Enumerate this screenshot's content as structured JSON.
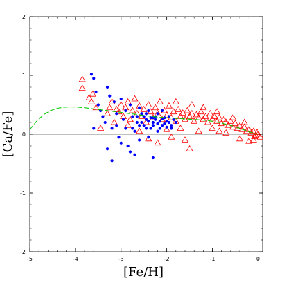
{
  "chart_data": {
    "type": "scatter",
    "title": "",
    "xlabel": "[Fe/H]",
    "ylabel": "[Ca/Fe]",
    "xlim": [
      -5,
      0.1
    ],
    "ylim": [
      -2,
      2
    ],
    "x_ticks": [
      -5,
      -4,
      -3,
      -2,
      -1,
      0
    ],
    "y_ticks": [
      -2,
      -1,
      0,
      1,
      2
    ],
    "x_tick_labels": [
      "-5",
      "-4",
      "-3",
      "-2",
      "-1",
      "0"
    ],
    "y_tick_labels": [
      "-2",
      "-1",
      "0",
      "1",
      "2"
    ],
    "grid": false,
    "reference_line": {
      "y": 0,
      "color": "#000000"
    },
    "model_curve": {
      "color": "#00cc00",
      "style": "dashed",
      "x": [
        -5.0,
        -4.85,
        -4.7,
        -4.55,
        -4.4,
        -4.25,
        -4.1,
        -3.95,
        -3.8,
        -3.6,
        -3.4,
        -3.2,
        -3.0,
        -2.8,
        -2.6,
        -2.4,
        -2.2,
        -2.0,
        -1.8,
        -1.6,
        -1.4,
        -1.2,
        -1.0,
        -0.8,
        -0.6,
        -0.4,
        -0.2,
        0.0
      ],
      "y": [
        0.08,
        0.22,
        0.33,
        0.4,
        0.44,
        0.46,
        0.465,
        0.46,
        0.45,
        0.43,
        0.41,
        0.39,
        0.37,
        0.35,
        0.33,
        0.31,
        0.29,
        0.28,
        0.27,
        0.26,
        0.25,
        0.24,
        0.22,
        0.19,
        0.15,
        0.1,
        0.04,
        0.0
      ]
    },
    "series": [
      {
        "marker": "open-triangle",
        "color": "#ff0000",
        "points": [
          [
            -3.85,
            0.93
          ],
          [
            -3.85,
            0.78
          ],
          [
            -3.7,
            0.62
          ],
          [
            -3.65,
            0.55
          ],
          [
            -3.62,
            0.68
          ],
          [
            -3.45,
            0.1
          ],
          [
            -3.3,
            0.35
          ],
          [
            -3.25,
            0.45
          ],
          [
            -3.15,
            0.2
          ],
          [
            -3.1,
            0.42
          ],
          [
            -3.05,
            0.38
          ],
          [
            -3.0,
            0.5
          ],
          [
            -2.95,
            0.3
          ],
          [
            -2.9,
            0.45
          ],
          [
            -2.85,
            0.55
          ],
          [
            -2.8,
            0.25
          ],
          [
            -2.75,
            0.4
          ],
          [
            -2.7,
            0.6
          ],
          [
            -2.65,
            0.35
          ],
          [
            -2.6,
            0.48
          ],
          [
            -2.55,
            0.3
          ],
          [
            -2.5,
            0.42
          ],
          [
            -2.45,
            0.2
          ],
          [
            -2.4,
            0.5
          ],
          [
            -2.35,
            0.38
          ],
          [
            -2.3,
            0.28
          ],
          [
            -2.25,
            0.45
          ],
          [
            -2.2,
            0.35
          ],
          [
            -2.15,
            0.55
          ],
          [
            -2.1,
            0.25
          ],
          [
            -2.05,
            0.4
          ],
          [
            -2.0,
            0.32
          ],
          [
            -1.95,
            0.48
          ],
          [
            -1.9,
            0.28
          ],
          [
            -1.85,
            0.38
          ],
          [
            -1.8,
            0.22
          ],
          [
            -1.75,
            0.42
          ],
          [
            -1.7,
            0.3
          ],
          [
            -1.65,
            0.36
          ],
          [
            -1.6,
            0.25
          ],
          [
            -1.55,
            0.4
          ],
          [
            -1.5,
            0.3
          ],
          [
            -1.45,
            0.35
          ],
          [
            -1.4,
            0.22
          ],
          [
            -1.35,
            0.33
          ],
          [
            -1.3,
            0.28
          ],
          [
            -1.25,
            0.38
          ],
          [
            -1.2,
            0.25
          ],
          [
            -1.15,
            0.3
          ],
          [
            -1.1,
            0.2
          ],
          [
            -1.05,
            0.35
          ],
          [
            -1.0,
            0.26
          ],
          [
            -0.95,
            0.3
          ],
          [
            -0.9,
            0.22
          ],
          [
            -0.85,
            0.28
          ],
          [
            -0.8,
            0.18
          ],
          [
            -0.75,
            0.25
          ],
          [
            -0.7,
            0.2
          ],
          [
            -0.65,
            0.15
          ],
          [
            -0.6,
            0.22
          ],
          [
            -0.55,
            0.12
          ],
          [
            -0.5,
            0.18
          ],
          [
            -0.45,
            0.1
          ],
          [
            -0.4,
            0.14
          ],
          [
            -0.35,
            0.08
          ],
          [
            -0.3,
            0.12
          ],
          [
            -0.25,
            0.05
          ],
          [
            -0.2,
            0.08
          ],
          [
            -0.15,
            0.02
          ],
          [
            -0.1,
            0.05
          ],
          [
            -0.05,
            -0.02
          ],
          [
            0.0,
            0.0
          ],
          [
            0.05,
            -0.05
          ],
          [
            -0.02,
            0.03
          ],
          [
            -0.08,
            -0.04
          ],
          [
            -2.2,
            -0.15
          ],
          [
            -1.9,
            -0.05
          ],
          [
            -1.6,
            -0.1
          ],
          [
            -1.3,
            0.05
          ],
          [
            -1.0,
            0.1
          ],
          [
            -0.7,
            0.02
          ],
          [
            -0.4,
            -0.08
          ],
          [
            -0.2,
            -0.12
          ],
          [
            -1.5,
            -0.25
          ],
          [
            -1.7,
            0.1
          ],
          [
            -2.4,
            -0.08
          ],
          [
            -2.6,
            0.05
          ],
          [
            -1.8,
            0.55
          ],
          [
            -1.2,
            0.45
          ],
          [
            -0.9,
            0.38
          ],
          [
            -2.0,
            0.08
          ],
          [
            -3.55,
            0.45
          ],
          [
            -3.2,
            0.55
          ],
          [
            -2.85,
            0.15
          ],
          [
            -1.45,
            0.5
          ],
          [
            -0.85,
            0.05
          ],
          [
            -0.55,
            0.28
          ],
          [
            -0.3,
            0.2
          ],
          [
            -0.1,
            -0.1
          ]
        ]
      },
      {
        "marker": "filled-circle",
        "color": "#0000ff",
        "points": [
          [
            -3.65,
            1.02
          ],
          [
            -3.6,
            0.95
          ],
          [
            -3.55,
            0.72
          ],
          [
            -3.5,
            0.5
          ],
          [
            -3.45,
            0.4
          ],
          [
            -3.4,
            0.3
          ],
          [
            -3.35,
            0.2
          ],
          [
            -3.3,
            0.8
          ],
          [
            -3.25,
            0.65
          ],
          [
            -3.2,
            0.1
          ],
          [
            -3.2,
            -0.45
          ],
          [
            -3.15,
            0.55
          ],
          [
            -3.1,
            0.35
          ],
          [
            -3.05,
            -0.05
          ],
          [
            -3.0,
            -0.15
          ],
          [
            -2.95,
            0.25
          ],
          [
            -2.9,
            0.1
          ],
          [
            -2.85,
            -0.2
          ],
          [
            -2.8,
            0.5
          ],
          [
            -2.75,
            0.3
          ],
          [
            -2.7,
            0.05
          ],
          [
            -2.65,
            0.2
          ],
          [
            -2.6,
            -0.1
          ],
          [
            -2.55,
            0.35
          ],
          [
            -2.5,
            0.15
          ],
          [
            -2.45,
            0.25
          ],
          [
            -2.4,
            0.4
          ],
          [
            -2.35,
            0.1
          ],
          [
            -2.3,
            0.2
          ],
          [
            -2.25,
            0.3
          ],
          [
            -2.2,
            0.05
          ],
          [
            -2.15,
            0.22
          ],
          [
            -2.1,
            0.15
          ],
          [
            -2.05,
            0.28
          ],
          [
            -2.0,
            0.12
          ],
          [
            -1.95,
            0.2
          ],
          [
            -1.9,
            0.1
          ],
          [
            -1.85,
            0.25
          ],
          [
            -2.8,
            -0.3
          ],
          [
            -3.0,
            0.6
          ],
          [
            -2.9,
            0.4
          ],
          [
            -2.6,
            0.45
          ],
          [
            -2.4,
            -0.05
          ],
          [
            -2.2,
            0.35
          ],
          [
            -2.35,
            0.28
          ],
          [
            -2.5,
            0.3
          ],
          [
            -2.3,
            0.15
          ],
          [
            -2.15,
            0.1
          ],
          [
            -2.05,
            0.18
          ],
          [
            -1.95,
            0.3
          ],
          [
            -3.6,
            0.1
          ],
          [
            -3.3,
            -0.25
          ],
          [
            -3.1,
            0.15
          ],
          [
            -2.7,
            -0.35
          ],
          [
            -2.3,
            -0.4
          ],
          [
            -2.1,
            0.4
          ],
          [
            -2.45,
            0.1
          ],
          [
            -2.25,
            0.25
          ],
          [
            -2.0,
            0.22
          ],
          [
            -1.9,
            0.15
          ],
          [
            -2.75,
            0.1
          ],
          [
            -2.55,
            0.2
          ],
          [
            -2.65,
            0.3
          ],
          [
            -2.45,
            0.35
          ],
          [
            -2.2,
            0.18
          ],
          [
            -2.4,
            0.22
          ],
          [
            -2.3,
            0.28
          ],
          [
            -2.6,
            0.15
          ],
          [
            -2.1,
            0.26
          ],
          [
            -1.8,
            0.2
          ]
        ]
      }
    ]
  }
}
